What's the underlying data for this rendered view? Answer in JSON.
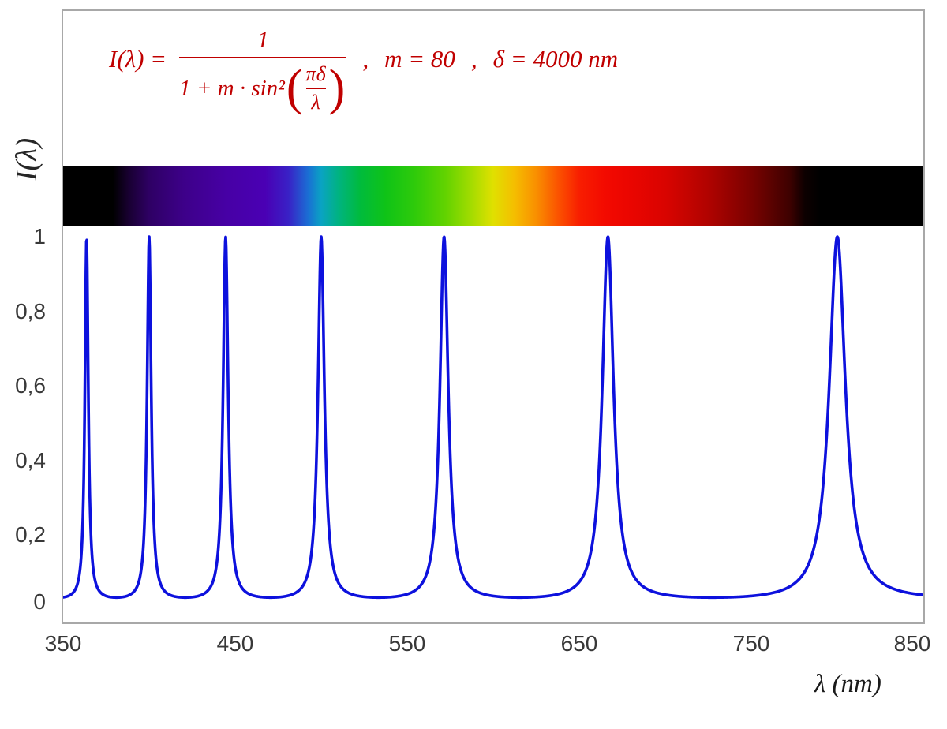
{
  "figure": {
    "y_axis_title": "I(λ)",
    "x_axis_title": "λ  (nm)",
    "y_ticks": [
      "1",
      "0,8",
      "0,6",
      "0,4",
      "0,2",
      "0"
    ],
    "x_ticks": [
      "350",
      "450",
      "550",
      "650",
      "750",
      "850"
    ]
  },
  "formula": {
    "lhs": "I(λ) =",
    "numerator": "1",
    "denominator_prefix": "1 + m · sin²",
    "inner_numerator": "πδ",
    "inner_denominator": "λ",
    "separator1": ",",
    "param_m": "m = 80",
    "separator2": ",",
    "param_delta": "δ = 4000 nm",
    "color": "#c00000"
  },
  "chart_data": {
    "type": "line",
    "title": "",
    "xlabel": "λ (nm)",
    "ylabel": "I(λ)",
    "xlim": [
      350,
      850
    ],
    "ylim": [
      0,
      1
    ],
    "x_tick_values": [
      350,
      450,
      550,
      650,
      750,
      850
    ],
    "y_tick_values": [
      0,
      0.2,
      0.4,
      0.6,
      0.8,
      1
    ],
    "grid": false,
    "legend": "none",
    "function": "I(λ) = 1 / (1 + m·sin²(π·δ/λ))",
    "params": {
      "m": 80,
      "delta_nm": 4000
    },
    "sample_step_nm": 0.25,
    "peaks_nm": [
      363.64,
      400,
      444.44,
      500,
      571.43,
      666.67,
      800
    ],
    "peak_value": 1,
    "min_value": 0.0123,
    "curve_color": "#0d11dd",
    "frame_border_color": "#a8a8a8",
    "spectrum_bar": {
      "range_nm": [
        350,
        850
      ],
      "stops": [
        {
          "pos": 0.0,
          "color": "#000000"
        },
        {
          "pos": 0.058,
          "color": "#000000"
        },
        {
          "pos": 0.075,
          "color": "#17002e"
        },
        {
          "pos": 0.1,
          "color": "#2e0064"
        },
        {
          "pos": 0.14,
          "color": "#3d0089"
        },
        {
          "pos": 0.19,
          "color": "#4700a5"
        },
        {
          "pos": 0.235,
          "color": "#4a00b4"
        },
        {
          "pos": 0.262,
          "color": "#3921c6"
        },
        {
          "pos": 0.285,
          "color": "#1a6fd4"
        },
        {
          "pos": 0.3,
          "color": "#0aa3c3"
        },
        {
          "pos": 0.32,
          "color": "#00b381"
        },
        {
          "pos": 0.345,
          "color": "#00bb3d"
        },
        {
          "pos": 0.375,
          "color": "#0fc317"
        },
        {
          "pos": 0.41,
          "color": "#30cb0a"
        },
        {
          "pos": 0.445,
          "color": "#63d300"
        },
        {
          "pos": 0.475,
          "color": "#a5dc00"
        },
        {
          "pos": 0.5,
          "color": "#e0e000"
        },
        {
          "pos": 0.525,
          "color": "#f5bd00"
        },
        {
          "pos": 0.55,
          "color": "#f98f00"
        },
        {
          "pos": 0.575,
          "color": "#fb5400"
        },
        {
          "pos": 0.6,
          "color": "#f81e00"
        },
        {
          "pos": 0.63,
          "color": "#f30a00"
        },
        {
          "pos": 0.66,
          "color": "#ea0500"
        },
        {
          "pos": 0.7,
          "color": "#d90400"
        },
        {
          "pos": 0.75,
          "color": "#b00300"
        },
        {
          "pos": 0.8,
          "color": "#7a0200"
        },
        {
          "pos": 0.845,
          "color": "#3d0100"
        },
        {
          "pos": 0.862,
          "color": "#0d0000"
        },
        {
          "pos": 0.88,
          "color": "#000000"
        },
        {
          "pos": 1.0,
          "color": "#000000"
        }
      ]
    }
  }
}
